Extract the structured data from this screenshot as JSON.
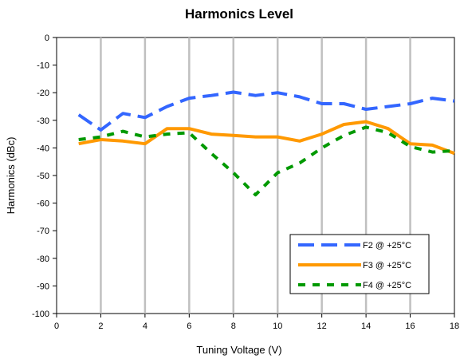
{
  "chart_data": {
    "type": "line",
    "title": "Harmonics Level",
    "xlabel": "Tuning Voltage (V)",
    "ylabel": "Harmonics (dBc)",
    "xlim": [
      0,
      18
    ],
    "ylim": [
      -100,
      0
    ],
    "xticks": [
      0,
      2,
      4,
      6,
      8,
      10,
      12,
      14,
      16,
      18
    ],
    "yticks": [
      0,
      -10,
      -20,
      -30,
      -40,
      -50,
      -60,
      -70,
      -80,
      -90,
      -100
    ],
    "grid": "vertical",
    "legend_position": "bottom-right",
    "series": [
      {
        "name": "F2 @ +25°C",
        "color": "#3366ff",
        "dash": "long-dash",
        "x": [
          1,
          2,
          3,
          4,
          5,
          6,
          7,
          8,
          9,
          10,
          11,
          12,
          13,
          14,
          15,
          16,
          17,
          18
        ],
        "y": [
          -28,
          -33.5,
          -27.5,
          -29,
          -25,
          -22,
          -21,
          -19.8,
          -21,
          -20,
          -21.5,
          -24,
          -24,
          -26,
          -25,
          -24,
          -22,
          -23
        ]
      },
      {
        "name": "F3 @ +25°C",
        "color": "#ff9900",
        "dash": "solid",
        "x": [
          1,
          2,
          3,
          4,
          5,
          6,
          7,
          8,
          9,
          10,
          11,
          12,
          13,
          14,
          15,
          16,
          17,
          18
        ],
        "y": [
          -38.5,
          -37,
          -37.5,
          -38.5,
          -33,
          -33,
          -35,
          -35.5,
          -36,
          -36,
          -37.5,
          -35,
          -31.5,
          -30.5,
          -33,
          -38.5,
          -39,
          -42
        ]
      },
      {
        "name": "F4 @ +25°C",
        "color": "#009900",
        "dash": "dot-dash",
        "x": [
          1,
          2,
          3,
          4,
          5,
          6,
          7,
          8,
          9,
          10,
          11,
          12,
          13,
          14,
          15,
          16,
          17,
          18
        ],
        "y": [
          -37,
          -36,
          -34,
          -36,
          -35,
          -34.5,
          -42,
          -49,
          -57,
          -49,
          -45.5,
          -40,
          -35.5,
          -32.5,
          -34.5,
          -39.5,
          -41.5,
          -41
        ]
      }
    ]
  }
}
